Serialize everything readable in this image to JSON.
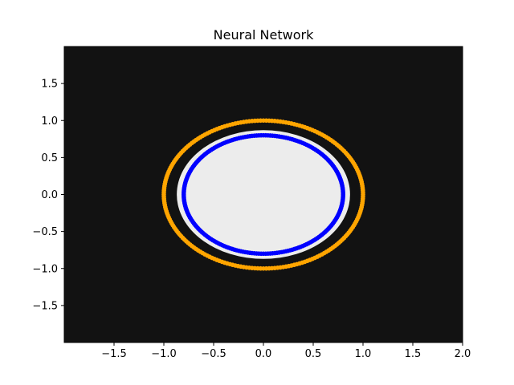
{
  "chart_data": {
    "type": "scatter",
    "title": "Neural Network",
    "xlabel": "",
    "ylabel": "",
    "xlim": [
      -2.0,
      2.0
    ],
    "ylim": [
      -2.0,
      2.0
    ],
    "xticks": [
      "−1.5",
      "−1.0",
      "−0.5",
      "0.0",
      "0.5",
      "1.0",
      "1.5",
      "2.0"
    ],
    "xtick_values": [
      -1.5,
      -1.0,
      -0.5,
      0.0,
      0.5,
      1.0,
      1.5,
      2.0
    ],
    "yticks": [
      "1.5",
      "1.0",
      "0.5",
      "0.0",
      "−0.5",
      "−1.0",
      "−1.5"
    ],
    "ytick_values": [
      1.5,
      1.0,
      0.5,
      0.0,
      -0.5,
      -1.0,
      -1.5
    ],
    "grid": false,
    "legend": "none",
    "background": {
      "description": "decision region",
      "outside_color": "#121212",
      "inside_color": "#ececec",
      "inside_radius": 0.87
    },
    "series": [
      {
        "color": "#ffa500",
        "radius": 1.0,
        "shape": "circle"
      },
      {
        "color": "#0000ff",
        "radius": 0.8,
        "shape": "circle"
      }
    ]
  }
}
